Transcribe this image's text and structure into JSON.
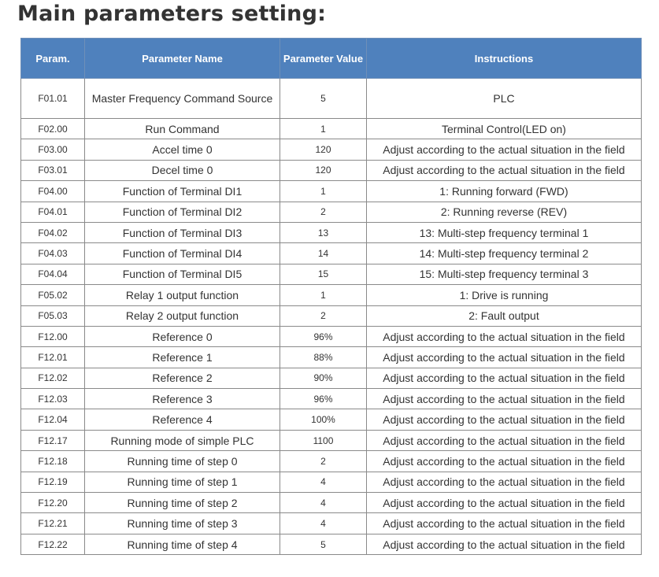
{
  "title": "Main parameters setting:",
  "table": {
    "headers": {
      "param": "Param.",
      "name": "Parameter Name",
      "value": "Parameter Value",
      "instructions": "Instructions"
    },
    "rows": [
      {
        "code": "F01.01",
        "name": "Master Frequency Command Source",
        "value": "5",
        "instruction": "PLC"
      },
      {
        "code": "F02.00",
        "name": "Run Command",
        "value": "1",
        "instruction": "Terminal Control(LED on)"
      },
      {
        "code": "F03.00",
        "name": "Accel time 0",
        "value": "120",
        "instruction": "Adjust according to the actual situation in the field"
      },
      {
        "code": "F03.01",
        "name": "Decel time 0",
        "value": "120",
        "instruction": "Adjust according to the actual situation in the field"
      },
      {
        "code": "F04.00",
        "name": "Function of Terminal DI1",
        "value": "1",
        "instruction": "1: Running forward (FWD)"
      },
      {
        "code": "F04.01",
        "name": "Function of Terminal DI2",
        "value": "2",
        "instruction": "2: Running reverse (REV)"
      },
      {
        "code": "F04.02",
        "name": "Function of Terminal DI3",
        "value": "13",
        "instruction": "13: Multi-step frequency terminal 1"
      },
      {
        "code": "F04.03",
        "name": "Function of Terminal DI4",
        "value": "14",
        "instruction": "14: Multi-step frequency terminal 2"
      },
      {
        "code": "F04.04",
        "name": "Function of Terminal DI5",
        "value": "15",
        "instruction": "15: Multi-step frequency terminal 3"
      },
      {
        "code": "F05.02",
        "name": "Relay 1 output function",
        "value": "1",
        "instruction": "1: Drive is running"
      },
      {
        "code": "F05.03",
        "name": "Relay 2 output function",
        "value": "2",
        "instruction": "2: Fault output"
      },
      {
        "code": "F12.00",
        "name": "Reference 0",
        "value": "96%",
        "instruction": "Adjust according to the actual situation in the field"
      },
      {
        "code": "F12.01",
        "name": "Reference 1",
        "value": "88%",
        "instruction": "Adjust according to the actual situation in the field"
      },
      {
        "code": "F12.02",
        "name": "Reference 2",
        "value": "90%",
        "instruction": "Adjust according to the actual situation in the field"
      },
      {
        "code": "F12.03",
        "name": "Reference 3",
        "value": "96%",
        "instruction": "Adjust according to the actual situation in the field"
      },
      {
        "code": "F12.04",
        "name": "Reference 4",
        "value": "100%",
        "instruction": "Adjust according to the actual situation in the field"
      },
      {
        "code": "F12.17",
        "name": "Running mode of simple PLC",
        "value": "1100",
        "instruction": "Adjust according to the actual situation in the field"
      },
      {
        "code": "F12.18",
        "name": "Running time of step 0",
        "value": "2",
        "instruction": "Adjust according to the actual situation in the field"
      },
      {
        "code": "F12.19",
        "name": "Running time of step 1",
        "value": "4",
        "instruction": "Adjust according to the actual situation in the field"
      },
      {
        "code": "F12.20",
        "name": "Running time of step 2",
        "value": "4",
        "instruction": "Adjust according to the actual situation in the field"
      },
      {
        "code": "F12.21",
        "name": "Running time of step 3",
        "value": "4",
        "instruction": "Adjust according to the actual situation in the field"
      },
      {
        "code": "F12.22",
        "name": "Running time of step 4",
        "value": "5",
        "instruction": "Adjust according to the actual situation in the field"
      }
    ]
  }
}
